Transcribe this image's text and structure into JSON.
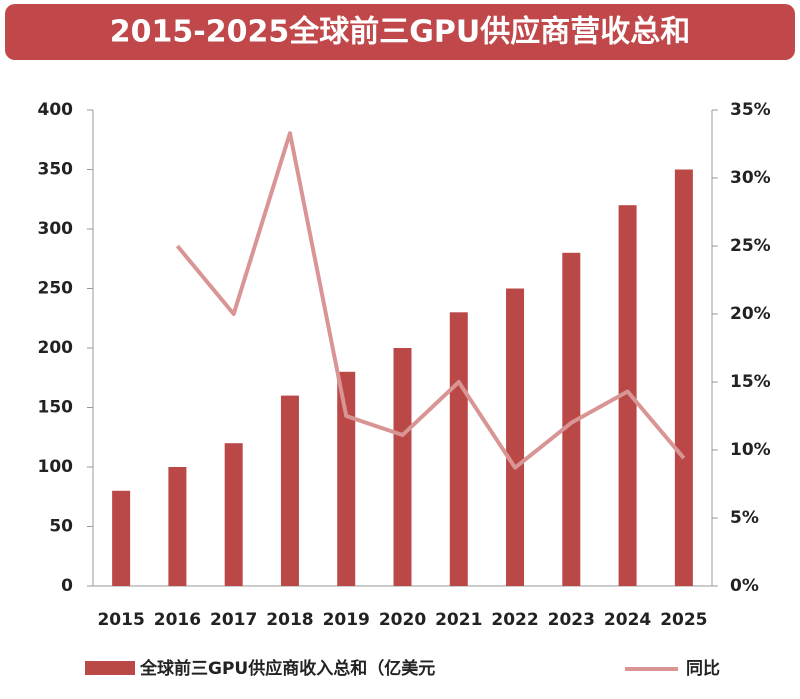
{
  "chart_data": {
    "type": "combo",
    "title": "2015-2025全球前三GPU供应商营收总和",
    "categories": [
      "2015",
      "2016",
      "2017",
      "2018",
      "2019",
      "2020",
      "2021",
      "2022",
      "2023",
      "2024",
      "2025"
    ],
    "series": [
      {
        "name": "全球前三GPU供应商收入总和（亿美元",
        "type": "bar",
        "color": "#b94846",
        "values": [
          80,
          100,
          120,
          160,
          180,
          200,
          230,
          250,
          280,
          320,
          350
        ]
      },
      {
        "name": "同比",
        "type": "line",
        "axis": "y2",
        "color": "#d99593",
        "values": [
          null,
          25,
          20,
          33.3,
          12.5,
          11.1,
          15,
          8.7,
          12,
          14.3,
          9.4
        ]
      }
    ],
    "ylim": [
      0,
      400
    ],
    "yticks": [
      0,
      50,
      100,
      150,
      200,
      250,
      300,
      350,
      400
    ],
    "y2lim": [
      0,
      35
    ],
    "y2ticks": [
      {
        "value": 0,
        "label": "0%"
      },
      {
        "value": 5,
        "label": "5%"
      },
      {
        "value": 10,
        "label": "10%"
      },
      {
        "value": 15,
        "label": "15%"
      },
      {
        "value": 20,
        "label": "20%"
      },
      {
        "value": 25,
        "label": "25%"
      },
      {
        "value": 30,
        "label": "30%"
      },
      {
        "value": 35,
        "label": "35%"
      }
    ],
    "grid": false
  }
}
